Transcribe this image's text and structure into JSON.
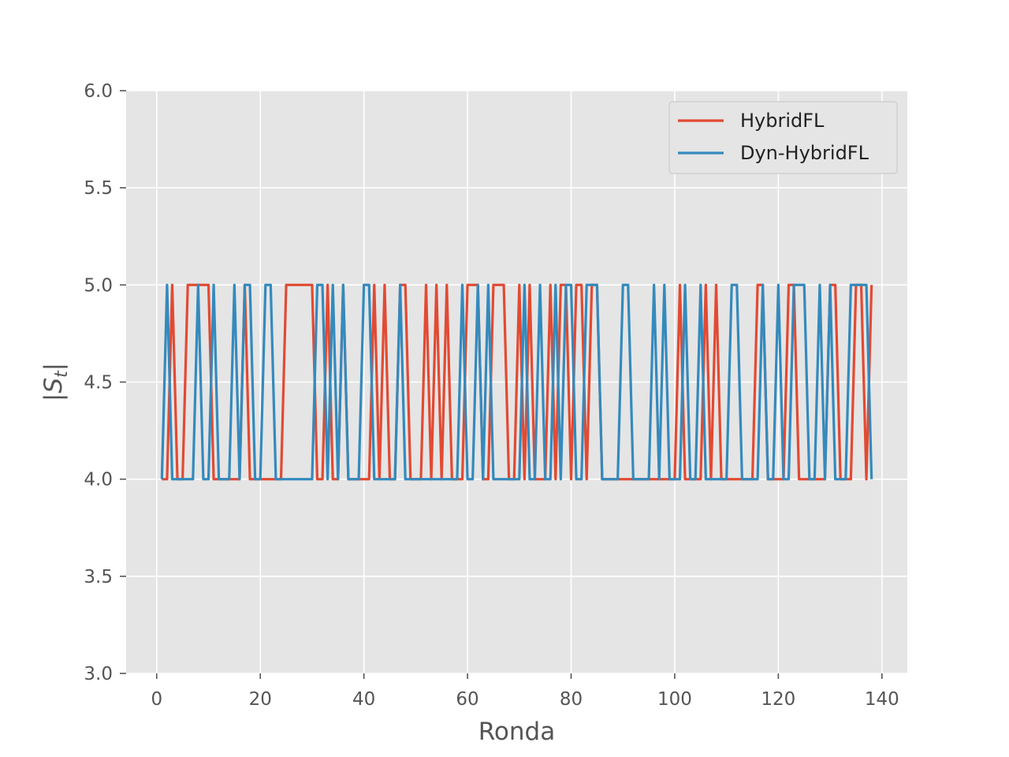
{
  "chart_data": {
    "type": "line",
    "title": "",
    "xlabel": "Ronda",
    "ylabel": "|S_t|",
    "ylabel_symbol": "S",
    "ylabel_subscript": "t",
    "xlim": [
      -5.9,
      144.9
    ],
    "ylim": [
      3.0,
      6.0
    ],
    "xticks": [
      0,
      20,
      40,
      60,
      80,
      100,
      120,
      140
    ],
    "yticks": [
      3.0,
      3.5,
      4.0,
      4.5,
      5.0,
      5.5,
      6.0
    ],
    "xtick_labels": [
      "0",
      "20",
      "40",
      "60",
      "80",
      "100",
      "120",
      "140"
    ],
    "ytick_labels": [
      "3.0",
      "3.5",
      "4.0",
      "4.5",
      "5.0",
      "5.5",
      "6.0"
    ],
    "grid": true,
    "legend_position": "top-right",
    "background_color": "#e5e5e5",
    "grid_color": "#ffffff",
    "series": [
      {
        "name": "HybridFL",
        "color": "#e24a33",
        "x": [
          1,
          2,
          3,
          4,
          5,
          6,
          7,
          8,
          9,
          10,
          11,
          12,
          13,
          14,
          15,
          16,
          17,
          18,
          19,
          20,
          21,
          22,
          23,
          24,
          25,
          26,
          27,
          28,
          29,
          30,
          31,
          32,
          33,
          34,
          35,
          36,
          37,
          38,
          39,
          40,
          41,
          42,
          43,
          44,
          45,
          46,
          47,
          48,
          49,
          50,
          51,
          52,
          53,
          54,
          55,
          56,
          57,
          58,
          59,
          60,
          61,
          62,
          63,
          64,
          65,
          66,
          67,
          68,
          69,
          70,
          71,
          72,
          73,
          74,
          75,
          76,
          77,
          78,
          79,
          80,
          81,
          82,
          83,
          84,
          85,
          86,
          87,
          88,
          89,
          90,
          91,
          92,
          93,
          94,
          95,
          96,
          97,
          98,
          99,
          100,
          101,
          102,
          103,
          104,
          105,
          106,
          107,
          108,
          109,
          110,
          111,
          112,
          113,
          114,
          115,
          116,
          117,
          118,
          119,
          120,
          121,
          122,
          123,
          124,
          125,
          126,
          127,
          128,
          129,
          130,
          131,
          132,
          133,
          134,
          135,
          136,
          137,
          138
        ],
        "values": [
          4,
          4,
          5,
          4,
          4,
          5,
          5,
          5,
          5,
          5,
          4,
          4,
          4,
          4,
          4,
          4,
          5,
          4,
          4,
          4,
          4,
          4,
          4,
          4,
          5,
          5,
          5,
          5,
          5,
          5,
          4,
          4,
          5,
          4,
          4,
          5,
          4,
          4,
          4,
          4,
          4,
          5,
          4,
          5,
          4,
          4,
          5,
          5,
          4,
          4,
          4,
          5,
          4,
          5,
          4,
          5,
          4,
          4,
          4,
          5,
          5,
          5,
          4,
          4,
          5,
          5,
          5,
          4,
          4,
          5,
          4,
          5,
          4,
          4,
          4,
          5,
          4,
          5,
          5,
          4,
          5,
          5,
          4,
          5,
          5,
          4,
          4,
          4,
          4,
          4,
          4,
          4,
          4,
          4,
          4,
          4,
          4,
          4,
          4,
          4,
          5,
          4,
          4,
          4,
          4,
          5,
          4,
          5,
          4,
          4,
          4,
          4,
          4,
          4,
          4,
          5,
          5,
          4,
          4,
          4,
          4,
          5,
          5,
          4,
          4,
          4,
          4,
          4,
          4,
          5,
          5,
          4,
          4,
          4,
          5,
          5,
          4,
          5
        ]
      },
      {
        "name": "Dyn-HybridFL",
        "color": "#348abd",
        "x": [
          1,
          2,
          3,
          4,
          5,
          6,
          7,
          8,
          9,
          10,
          11,
          12,
          13,
          14,
          15,
          16,
          17,
          18,
          19,
          20,
          21,
          22,
          23,
          24,
          25,
          26,
          27,
          28,
          29,
          30,
          31,
          32,
          33,
          34,
          35,
          36,
          37,
          38,
          39,
          40,
          41,
          42,
          43,
          44,
          45,
          46,
          47,
          48,
          49,
          50,
          51,
          52,
          53,
          54,
          55,
          56,
          57,
          58,
          59,
          60,
          61,
          62,
          63,
          64,
          65,
          66,
          67,
          68,
          69,
          70,
          71,
          72,
          73,
          74,
          75,
          76,
          77,
          78,
          79,
          80,
          81,
          82,
          83,
          84,
          85,
          86,
          87,
          88,
          89,
          90,
          91,
          92,
          93,
          94,
          95,
          96,
          97,
          98,
          99,
          100,
          101,
          102,
          103,
          104,
          105,
          106,
          107,
          108,
          109,
          110,
          111,
          112,
          113,
          114,
          115,
          116,
          117,
          118,
          119,
          120,
          121,
          122,
          123,
          124,
          125,
          126,
          127,
          128,
          129,
          130,
          131,
          132,
          133,
          134,
          135,
          136,
          137,
          138
        ],
        "values": [
          4,
          5,
          4,
          4,
          4,
          4,
          4,
          5,
          4,
          4,
          5,
          4,
          4,
          4,
          5,
          4,
          5,
          5,
          4,
          4,
          5,
          5,
          4,
          4,
          4,
          4,
          4,
          4,
          4,
          4,
          5,
          5,
          4,
          5,
          4,
          5,
          4,
          4,
          4,
          5,
          5,
          4,
          4,
          4,
          4,
          4,
          5,
          4,
          4,
          4,
          4,
          4,
          4,
          4,
          4,
          4,
          4,
          4,
          5,
          4,
          4,
          5,
          4,
          5,
          4,
          4,
          4,
          4,
          4,
          4,
          5,
          4,
          4,
          5,
          4,
          4,
          5,
          4,
          5,
          5,
          4,
          4,
          5,
          5,
          5,
          4,
          4,
          4,
          4,
          5,
          5,
          4,
          4,
          4,
          4,
          5,
          4,
          5,
          4,
          4,
          4,
          5,
          4,
          4,
          5,
          4,
          4,
          4,
          4,
          4,
          5,
          5,
          4,
          4,
          4,
          4,
          5,
          4,
          4,
          5,
          4,
          4,
          5,
          5,
          5,
          4,
          4,
          5,
          4,
          5,
          4,
          4,
          4,
          5,
          5,
          5,
          5,
          4
        ]
      }
    ]
  }
}
